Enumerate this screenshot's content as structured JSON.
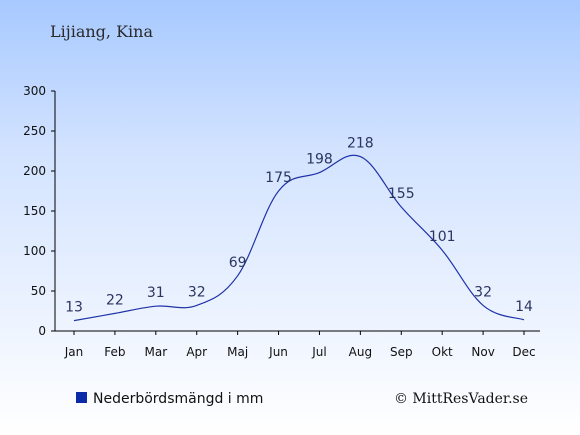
{
  "header": {
    "location": "Lijiang, Kina"
  },
  "legend": {
    "label": "Nederbördsmängd i mm",
    "color": "#0b2aa8"
  },
  "credit": {
    "text": "© MittResVader.se"
  },
  "colors": {
    "line": "#1f33a8",
    "axis": "#000000",
    "label": "#2b3560"
  },
  "chart_data": {
    "type": "line",
    "categories": [
      "Jan",
      "Feb",
      "Mar",
      "Apr",
      "Maj",
      "Jun",
      "Jul",
      "Aug",
      "Sep",
      "Okt",
      "Nov",
      "Dec"
    ],
    "series": [
      {
        "name": "Nederbördsmängd i mm",
        "values": [
          13,
          22,
          31,
          32,
          69,
          175,
          198,
          218,
          155,
          101,
          32,
          14
        ]
      }
    ],
    "ylim": [
      0,
      300
    ],
    "yticks": [
      0,
      50,
      100,
      150,
      200,
      250,
      300
    ],
    "grid": false,
    "legend_position": "bottom-left"
  }
}
